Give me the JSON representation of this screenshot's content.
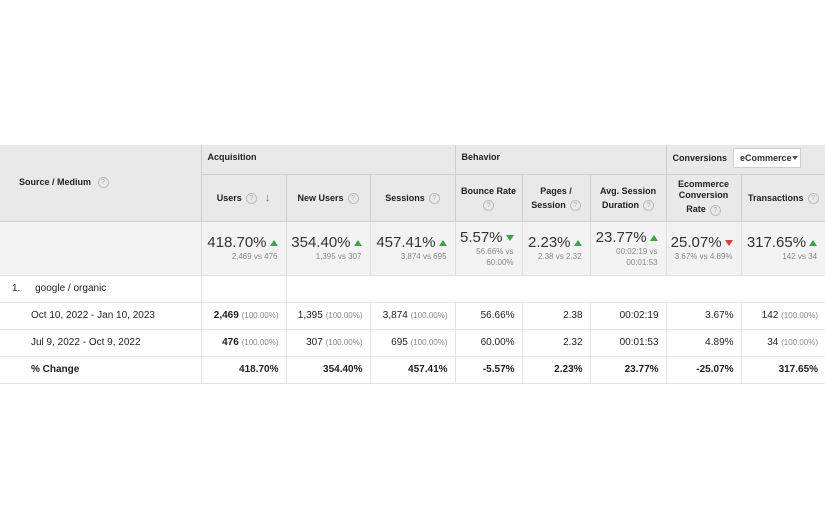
{
  "header": {
    "source_medium": "Source / Medium",
    "groups": {
      "acquisition": "Acquisition",
      "behavior": "Behavior",
      "conversions": "Conversions",
      "conversions_select": "eCommerce"
    },
    "columns": [
      {
        "l1": "Users",
        "l2": ""
      },
      {
        "l1": "New Users",
        "l2": ""
      },
      {
        "l1": "Sessions",
        "l2": ""
      },
      {
        "l1": "Bounce Rate",
        "l2": ""
      },
      {
        "l1": "Pages /",
        "l2": "Session"
      },
      {
        "l1": "Avg. Session",
        "l2": "Duration"
      },
      {
        "l1": "Ecommerce",
        "l2": "Conversion",
        "l3": "Rate"
      },
      {
        "l1": "Transactions",
        "l2": ""
      }
    ]
  },
  "summary": [
    {
      "value": "418.70%",
      "trend": "up",
      "sub1": "2,469 vs 476",
      "sub2": ""
    },
    {
      "value": "354.40%",
      "trend": "up",
      "sub1": "1,395 vs 307",
      "sub2": ""
    },
    {
      "value": "457.41%",
      "trend": "up",
      "sub1": "3,874 vs 695",
      "sub2": ""
    },
    {
      "value": "5.57%",
      "trend": "down-green",
      "sub1": "56.66% vs",
      "sub2": "60.00%"
    },
    {
      "value": "2.23%",
      "trend": "up",
      "sub1": "2.38 vs 2.32",
      "sub2": ""
    },
    {
      "value": "23.77%",
      "trend": "up",
      "sub1": "00:02:19 vs",
      "sub2": "00:01:53"
    },
    {
      "value": "25.07%",
      "trend": "down-red",
      "sub1": "3.67% vs 4.89%",
      "sub2": ""
    },
    {
      "value": "317.65%",
      "trend": "up",
      "sub1": "142 vs 34",
      "sub2": ""
    }
  ],
  "group_row": {
    "index": "1.",
    "label": "google / organic"
  },
  "rows": [
    {
      "label": "Oct 10, 2022 - Jan 10, 2023",
      "cells": [
        {
          "v": "2,469",
          "p": "(100.00%)",
          "bold": true
        },
        {
          "v": "1,395",
          "p": "(100.00%)"
        },
        {
          "v": "3,874",
          "p": "(100.00%)"
        },
        {
          "v": "56.66%",
          "p": ""
        },
        {
          "v": "2.38",
          "p": ""
        },
        {
          "v": "00:02:19",
          "p": ""
        },
        {
          "v": "3.67%",
          "p": ""
        },
        {
          "v": "142",
          "p": "(100.00%)"
        }
      ]
    },
    {
      "label": "Jul 9, 2022 - Oct 9, 2022",
      "cells": [
        {
          "v": "476",
          "p": "(100.00%)",
          "bold": true
        },
        {
          "v": "307",
          "p": "(100.00%)"
        },
        {
          "v": "695",
          "p": "(100.00%)"
        },
        {
          "v": "60.00%",
          "p": ""
        },
        {
          "v": "2.32",
          "p": ""
        },
        {
          "v": "00:01:53",
          "p": ""
        },
        {
          "v": "4.89%",
          "p": ""
        },
        {
          "v": "34",
          "p": "(100.00%)"
        }
      ]
    }
  ],
  "change_row": {
    "label": "% Change",
    "cells": [
      "418.70%",
      "354.40%",
      "457.41%",
      "-5.57%",
      "2.23%",
      "23.77%",
      "-25.07%",
      "317.65%"
    ]
  }
}
